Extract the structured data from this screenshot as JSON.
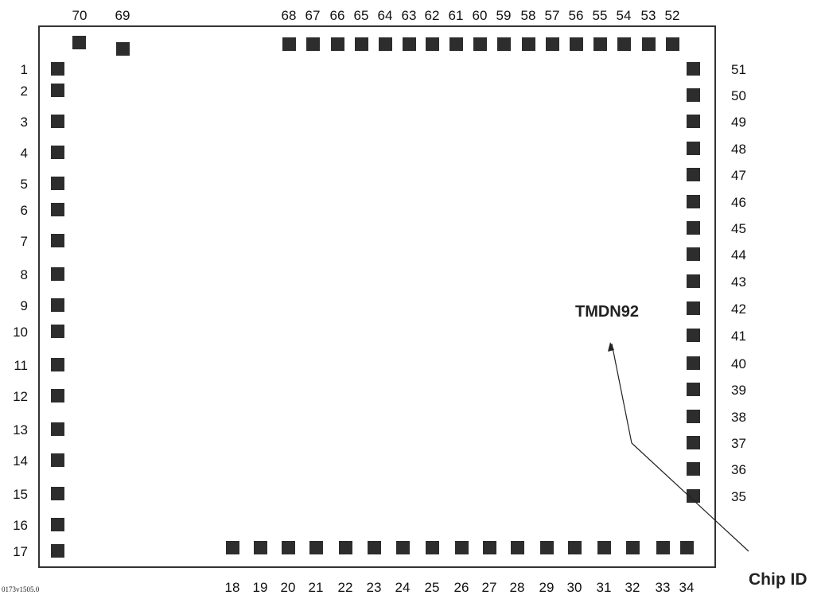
{
  "chip": {
    "name": "TMDN92",
    "callout_label": "Chip ID",
    "document_id": "0173v1505.0"
  },
  "colors": {
    "pad": "#2d2d2d",
    "outline": "#333333",
    "text": "#111111"
  },
  "pins": {
    "left": [
      "1",
      "2",
      "3",
      "4",
      "5",
      "6",
      "7",
      "8",
      "9",
      "10",
      "11",
      "12",
      "13",
      "14",
      "15",
      "16",
      "17"
    ],
    "bottom": [
      "18",
      "19",
      "20",
      "21",
      "22",
      "23",
      "24",
      "25",
      "26",
      "27",
      "28",
      "29",
      "30",
      "31",
      "32",
      "33",
      "34"
    ],
    "right": [
      "35",
      "36",
      "37",
      "38",
      "39",
      "40",
      "41",
      "42",
      "43",
      "44",
      "45",
      "46",
      "47",
      "48",
      "49",
      "50",
      "51"
    ],
    "top": [
      "52",
      "53",
      "54",
      "55",
      "56",
      "57",
      "58",
      "59",
      "60",
      "61",
      "62",
      "63",
      "64",
      "65",
      "66",
      "67",
      "68"
    ],
    "top_extra": [
      "69",
      "70"
    ]
  }
}
